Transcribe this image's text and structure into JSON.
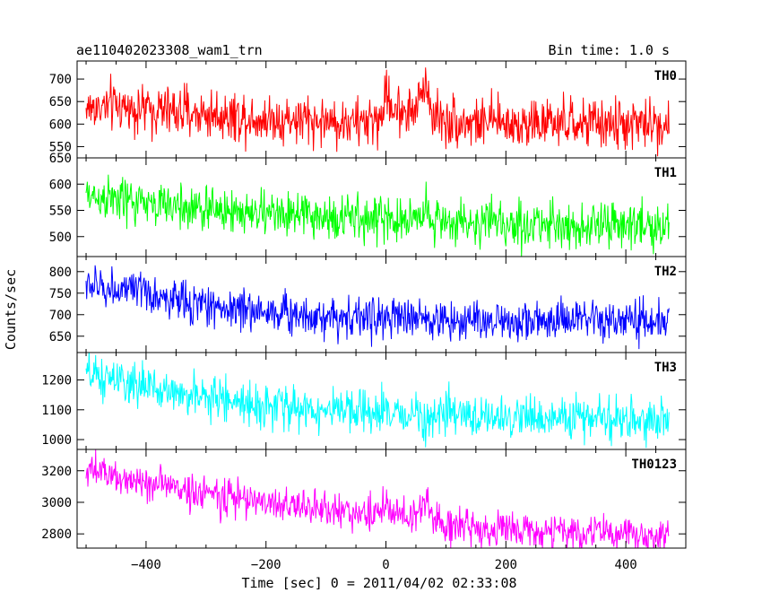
{
  "header": {
    "title": "ae110402023308_wam1_trn",
    "bin_time": "Bin time: 1.0 s"
  },
  "chart_data": {
    "type": "line",
    "title": "ae110402023308_wam1_trn",
    "subtitle": "Bin time: 1.0 s",
    "xlabel": "Time [sec] 0 = 2011/04/02 02:33:08",
    "ylabel": "Counts/sec",
    "xlim": [
      -515,
      500
    ],
    "x_ticks": [
      -400,
      -200,
      0,
      200,
      400
    ],
    "x_tick_labels": [
      "−400",
      "−200",
      "0",
      "200",
      "400"
    ],
    "x_range_data": [
      -500,
      472
    ],
    "grid": false,
    "panels": [
      {
        "name": "TH0",
        "color": "#ff0000",
        "ylim": [
          525,
          740
        ],
        "yticks": [
          550,
          600,
          650,
          700
        ],
        "yticks_visible": [
          "550",
          "600",
          "650",
          "700"
        ],
        "top_tick_label": "650",
        "x": [
          -500,
          -450,
          -400,
          -350,
          -300,
          -250,
          -200,
          -150,
          -100,
          -50,
          -10,
          0,
          10,
          30,
          50,
          65,
          80,
          100,
          150,
          200,
          250,
          300,
          350,
          400,
          450,
          472
        ],
        "values": [
          635,
          640,
          632,
          628,
          622,
          618,
          612,
          610,
          606,
          602,
          610,
          665,
          640,
          628,
          632,
          690,
          620,
          608,
          604,
          603,
          601,
          600,
          600,
          599,
          600,
          600
        ],
        "noise": 28
      },
      {
        "name": "TH1",
        "color": "#00ff00",
        "ylim": [
          462,
          650
        ],
        "yticks": [
          500,
          550,
          600,
          650
        ],
        "yticks_visible": [
          "500",
          "550",
          "600"
        ],
        "x": [
          -500,
          -450,
          -400,
          -300,
          -200,
          -100,
          0,
          50,
          65,
          80,
          100,
          200,
          300,
          400,
          472
        ],
        "values": [
          578,
          570,
          562,
          552,
          544,
          537,
          532,
          533,
          555,
          536,
          528,
          524,
          522,
          520,
          521
        ],
        "noise": 22
      },
      {
        "name": "TH2",
        "color": "#0000ff",
        "ylim": [
          612,
          835
        ],
        "yticks": [
          650,
          700,
          750,
          800
        ],
        "yticks_visible": [
          "650",
          "700",
          "750",
          "800"
        ],
        "x": [
          -500,
          -450,
          -400,
          -350,
          -300,
          -250,
          -200,
          -150,
          -100,
          0,
          100,
          200,
          300,
          400,
          472
        ],
        "values": [
          768,
          760,
          748,
          732,
          722,
          714,
          708,
          702,
          697,
          692,
          688,
          686,
          685,
          683,
          683
        ],
        "noise": 24
      },
      {
        "name": "TH3",
        "color": "#00ffff",
        "ylim": [
          967,
          1292
        ],
        "yticks": [
          1000,
          1100,
          1200
        ],
        "yticks_visible": [
          "1000",
          "1100",
          "1200"
        ],
        "x": [
          -500,
          -450,
          -400,
          -350,
          -300,
          -250,
          -200,
          -150,
          -100,
          0,
          100,
          200,
          300,
          400,
          472
        ],
        "values": [
          1215,
          1195,
          1175,
          1158,
          1142,
          1128,
          1115,
          1105,
          1096,
          1086,
          1080,
          1075,
          1072,
          1069,
          1068
        ],
        "noise": 36
      },
      {
        "name": "TH0123",
        "color": "#ff00ff",
        "ylim": [
          2710,
          3335
        ],
        "yticks": [
          2800,
          3000,
          3200
        ],
        "yticks_visible": [
          "2800",
          "3000",
          "3200"
        ],
        "x": [
          -500,
          -450,
          -400,
          -350,
          -300,
          -250,
          -200,
          -150,
          -100,
          -50,
          -10,
          0,
          10,
          50,
          65,
          80,
          100,
          200,
          300,
          400,
          472
        ],
        "values": [
          3200,
          3160,
          3130,
          3090,
          3055,
          3025,
          3000,
          2975,
          2955,
          2935,
          2930,
          2990,
          2930,
          2900,
          3020,
          2880,
          2860,
          2825,
          2810,
          2800,
          2795
        ],
        "noise": 58
      }
    ]
  }
}
